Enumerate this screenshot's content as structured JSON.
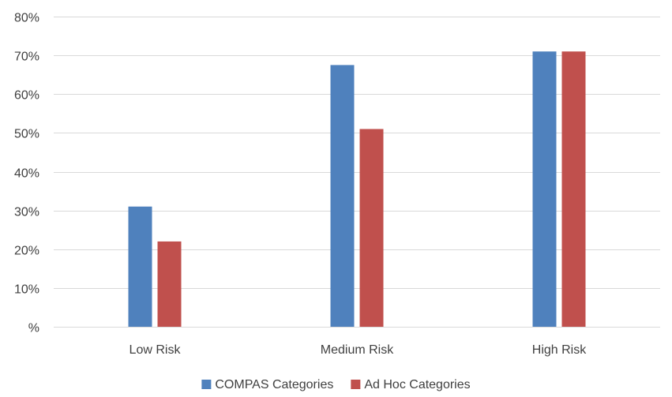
{
  "chart_data": {
    "type": "bar",
    "title": "",
    "xlabel": "",
    "ylabel": "",
    "categories": [
      "Low Risk",
      "Medium Risk",
      "High Risk"
    ],
    "series": [
      {
        "name": "COMPAS Categories",
        "color": "#4F81BD",
        "values": [
          31,
          67.5,
          71
        ]
      },
      {
        "name": "Ad Hoc Categories",
        "color": "#C0504D",
        "values": [
          22,
          51,
          71
        ]
      }
    ],
    "ylim": [
      0,
      80
    ],
    "yticks": [
      0,
      10,
      20,
      30,
      40,
      50,
      60,
      70,
      80
    ],
    "ytick_labels": [
      "%",
      "10%",
      "20%",
      "30%",
      "40%",
      "50%",
      "60%",
      "70%",
      "80%"
    ],
    "grid": true,
    "gridline_color": "#D9D9D9",
    "legend_position": "bottom"
  }
}
